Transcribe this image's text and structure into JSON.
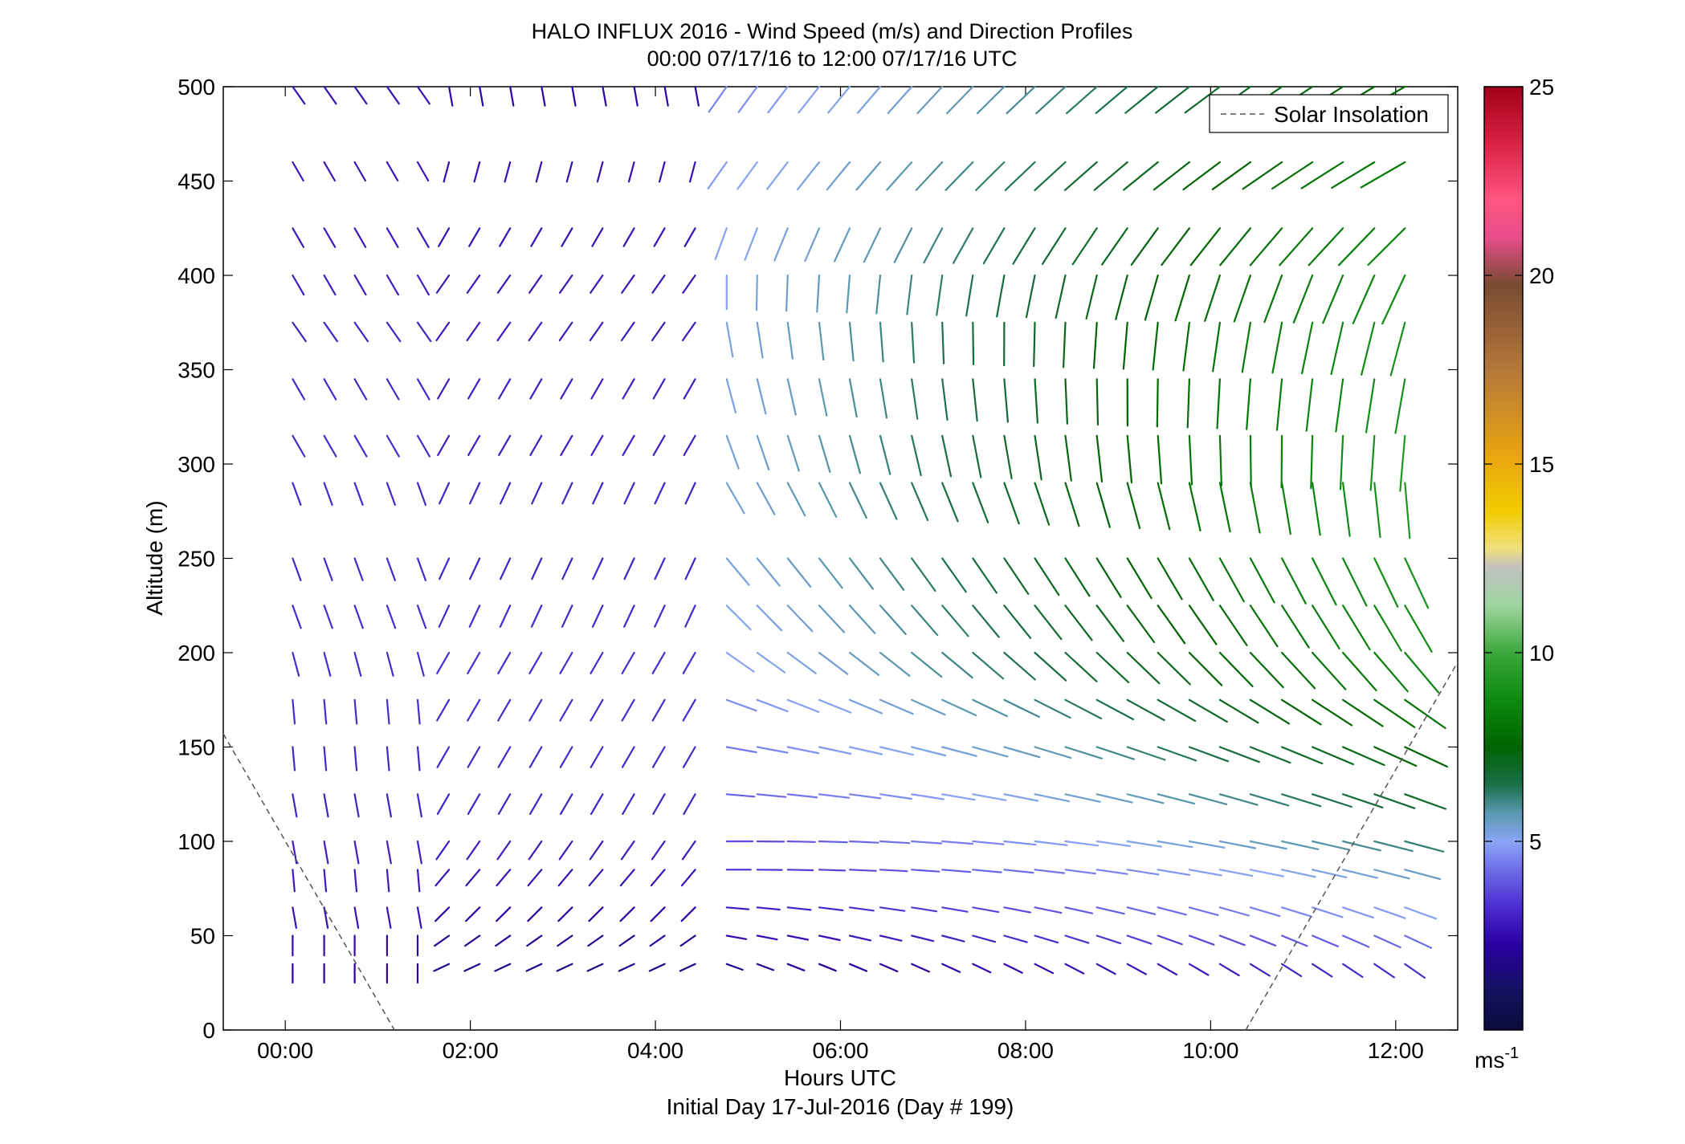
{
  "chart_data": {
    "type": "quiver",
    "title": "HALO INFLUX 2016 - Wind Speed (m/s) and Direction Profiles",
    "subtitle": "00:00 07/17/16 to 12:00 07/17/16  UTC",
    "xlabel": "Hours UTC",
    "xlabel2": "Initial Day 17-Jul-2016 (Day # 199)",
    "ylabel": "Altitude (m)",
    "xlim": [
      -0.67,
      12.67
    ],
    "ylim": [
      0,
      500
    ],
    "xticks": [
      0,
      2,
      4,
      6,
      8,
      10,
      12
    ],
    "xtick_labels": [
      "00:00",
      "02:00",
      "04:00",
      "06:00",
      "08:00",
      "10:00",
      "12:00"
    ],
    "yticks": [
      0,
      50,
      100,
      150,
      200,
      250,
      300,
      350,
      400,
      450,
      500
    ],
    "ytick_labels": [
      "0",
      "50",
      "100",
      "150",
      "200",
      "250",
      "300",
      "350",
      "400",
      "450",
      "500"
    ],
    "colorbar": {
      "range": [
        0,
        25
      ],
      "ticks": [
        5,
        10,
        15,
        20,
        25
      ],
      "tick_labels": [
        "5",
        "10",
        "15",
        "20",
        "25"
      ],
      "unit": "ms",
      "unit_exp": "-1"
    },
    "legend": {
      "label": "Solar Insolation",
      "position": "top-right"
    },
    "solar_insolation": [
      {
        "x": [
          -0.67,
          1.18
        ],
        "y": [
          157,
          0
        ]
      },
      {
        "x": [
          10.38,
          12.67
        ],
        "y": [
          0,
          195
        ]
      }
    ],
    "wind": {
      "description": "direction = bearing toward which the arrow points (deg clockwise from north/up); speed in m/s",
      "times": [
        0.08,
        0.42,
        0.75,
        1.1,
        1.43,
        1.77,
        2.1,
        2.43,
        2.77,
        3.1,
        3.43,
        3.77,
        4.1,
        4.43,
        4.77,
        5.1,
        5.43,
        5.77,
        6.1,
        6.43,
        6.77,
        7.1,
        7.43,
        7.77,
        8.1,
        8.43,
        8.77,
        9.1,
        9.43,
        9.77,
        10.1,
        10.43,
        10.77,
        11.1,
        11.43,
        11.77,
        12.1
      ],
      "altitudes": [
        35,
        50,
        65,
        85,
        100,
        125,
        150,
        175,
        200,
        225,
        250,
        290,
        315,
        345,
        375,
        400,
        425,
        460,
        500
      ],
      "profiles": [
        {
          "t0": 0.08,
          "t1": 1.43,
          "alt": [
            35,
            50,
            65,
            85,
            100,
            125,
            150,
            175,
            200,
            225,
            250,
            290,
            315,
            345,
            375,
            400,
            425,
            460,
            500
          ],
          "dir": [
            180,
            180,
            170,
            175,
            170,
            170,
            175,
            175,
            165,
            160,
            160,
            160,
            150,
            150,
            145,
            150,
            150,
            150,
            145
          ],
          "spd": [
            2.2,
            2.4,
            2.6,
            2.8,
            2.9,
            3.0,
            3.1,
            3.2,
            3.2,
            3.2,
            3.1,
            3.1,
            3.2,
            3.1,
            3.0,
            2.9,
            2.8,
            2.7,
            2.6
          ]
        },
        {
          "t0": 1.77,
          "t1": 4.43,
          "alt": [
            35,
            50,
            65,
            85,
            100,
            125,
            150,
            175,
            200,
            225,
            250,
            290,
            315,
            345,
            375,
            400,
            425,
            460,
            500
          ],
          "dir": [
            245,
            235,
            225,
            220,
            215,
            210,
            210,
            210,
            210,
            205,
            205,
            205,
            210,
            210,
            215,
            215,
            210,
            195,
            170
          ],
          "spd": [
            1.8,
            2.0,
            2.3,
            2.6,
            2.8,
            3.0,
            3.1,
            3.2,
            3.2,
            3.1,
            3.0,
            3.0,
            2.9,
            2.9,
            2.8,
            2.7,
            2.6,
            2.5,
            2.3
          ]
        },
        {
          "t0": 4.77,
          "t1": 12.1,
          "alt": [
            35,
            50,
            65,
            85,
            100,
            125,
            150,
            175,
            200,
            225,
            250,
            290,
            315,
            345,
            375,
            400,
            425,
            460,
            500
          ],
          "dir": [
            110,
            100,
            95,
            90,
            90,
            95,
            100,
            110,
            125,
            135,
            140,
            150,
            160,
            165,
            170,
            180,
            200,
            215,
            215
          ],
          "spd": [
            2.5,
            3.2,
            3.8,
            4.3,
            4.8,
            5.3,
            5.8,
            6.2,
            6.6,
            6.8,
            7.0,
            7.1,
            7.1,
            7.0,
            7.0,
            6.8,
            6.6,
            6.4,
            6.0
          ]
        }
      ]
    }
  }
}
